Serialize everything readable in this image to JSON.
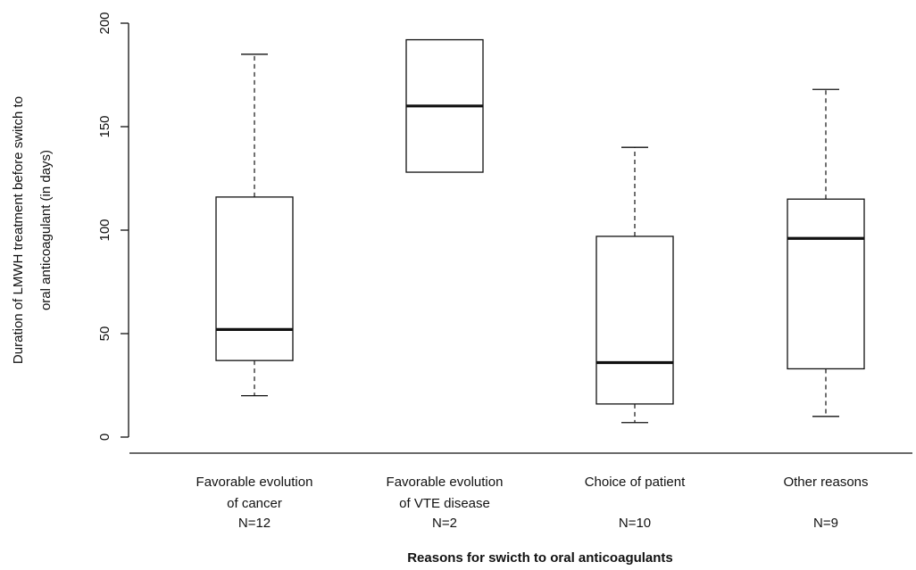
{
  "chart_data": {
    "type": "boxplot",
    "title": "",
    "xlabel": "Reasons for swicth to oral anticoagulants",
    "ylabel_lines": [
      "Duration of LMWH treatment before switch to",
      "oral anticoagulant (in days)"
    ],
    "ylim": [
      0,
      200
    ],
    "yticks": [
      0,
      50,
      100,
      150,
      200
    ],
    "grid": false,
    "categories": [
      {
        "label_lines": [
          "Favorable evolution",
          "of cancer"
        ],
        "n_label": "N=12"
      },
      {
        "label_lines": [
          "Favorable evolution",
          "of VTE disease"
        ],
        "n_label": "N=2"
      },
      {
        "label_lines": [
          "Choice of patient"
        ],
        "n_label": "N=10"
      },
      {
        "label_lines": [
          "Other reasons"
        ],
        "n_label": "N=9"
      }
    ],
    "boxes": [
      {
        "whisker_low": 20,
        "q1": 37,
        "median": 52,
        "q3": 116,
        "whisker_high": 185
      },
      {
        "whisker_low": 128,
        "q1": 128,
        "median": 160,
        "q3": 192,
        "whisker_high": 192
      },
      {
        "whisker_low": 7,
        "q1": 16,
        "median": 36,
        "q3": 97,
        "whisker_high": 140
      },
      {
        "whisker_low": 10,
        "q1": 33,
        "median": 96,
        "q3": 115,
        "whisker_high": 168
      }
    ]
  }
}
